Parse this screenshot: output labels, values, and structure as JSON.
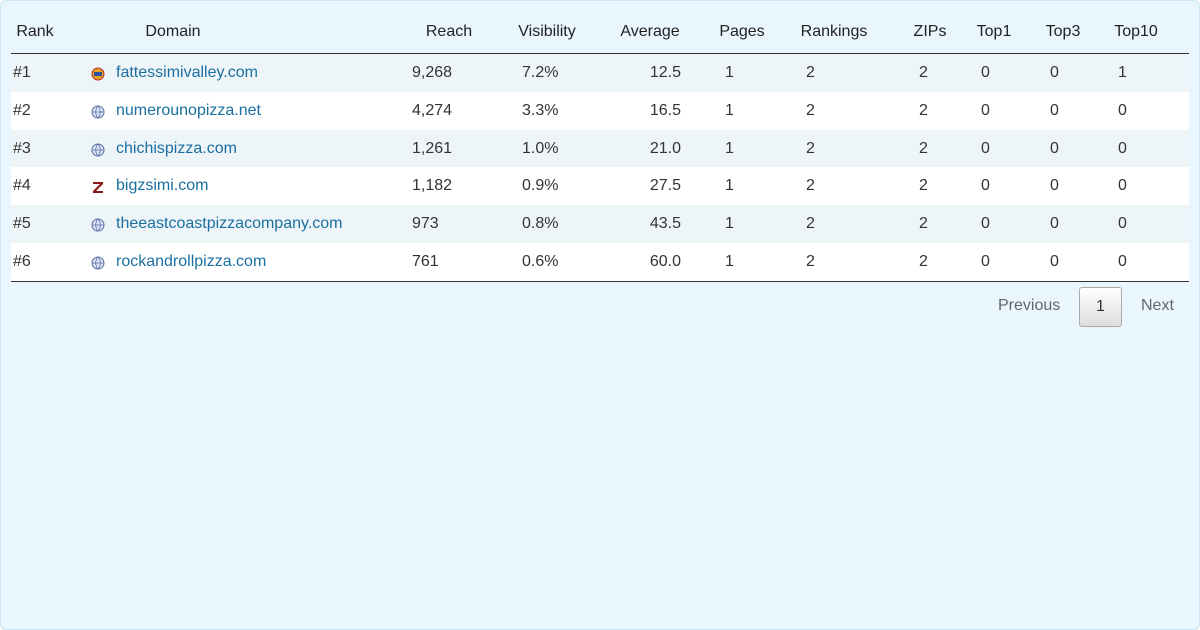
{
  "table": {
    "header": [
      "Rank",
      "Domain",
      "Reach",
      "Visibility",
      "Average",
      "Pages",
      "Rankings",
      "ZIPs",
      "Top1",
      "Top3",
      "Top10"
    ],
    "rows": [
      [
        "#1",
        "fattessimivalley.com",
        "9,268",
        "7.2%",
        "12.5",
        "1",
        "2",
        "2",
        "0",
        "0",
        "1"
      ],
      [
        "#2",
        "numerounopizza.net",
        "4,274",
        "3.3%",
        "16.5",
        "1",
        "2",
        "2",
        "0",
        "0",
        "0"
      ],
      [
        "#3",
        "chichispizza.com",
        "1,261",
        "1.0%",
        "21.0",
        "1",
        "2",
        "2",
        "0",
        "0",
        "0"
      ],
      [
        "#4",
        "bigzsimi.com",
        "1,182",
        "0.9%",
        "27.5",
        "1",
        "2",
        "2",
        "0",
        "0",
        "0"
      ],
      [
        "#5",
        "theeastcoastpizzacompany.com",
        "973",
        "0.8%",
        "43.5",
        "1",
        "2",
        "2",
        "0",
        "0",
        "0"
      ],
      [
        "#6",
        "rockandrollpizza.com",
        "761",
        "0.6%",
        "60.0",
        "1",
        "2",
        "2",
        "0",
        "0",
        "0"
      ]
    ]
  },
  "pagination": {
    "previous": "Previous",
    "current": "1",
    "next": "Next"
  }
}
